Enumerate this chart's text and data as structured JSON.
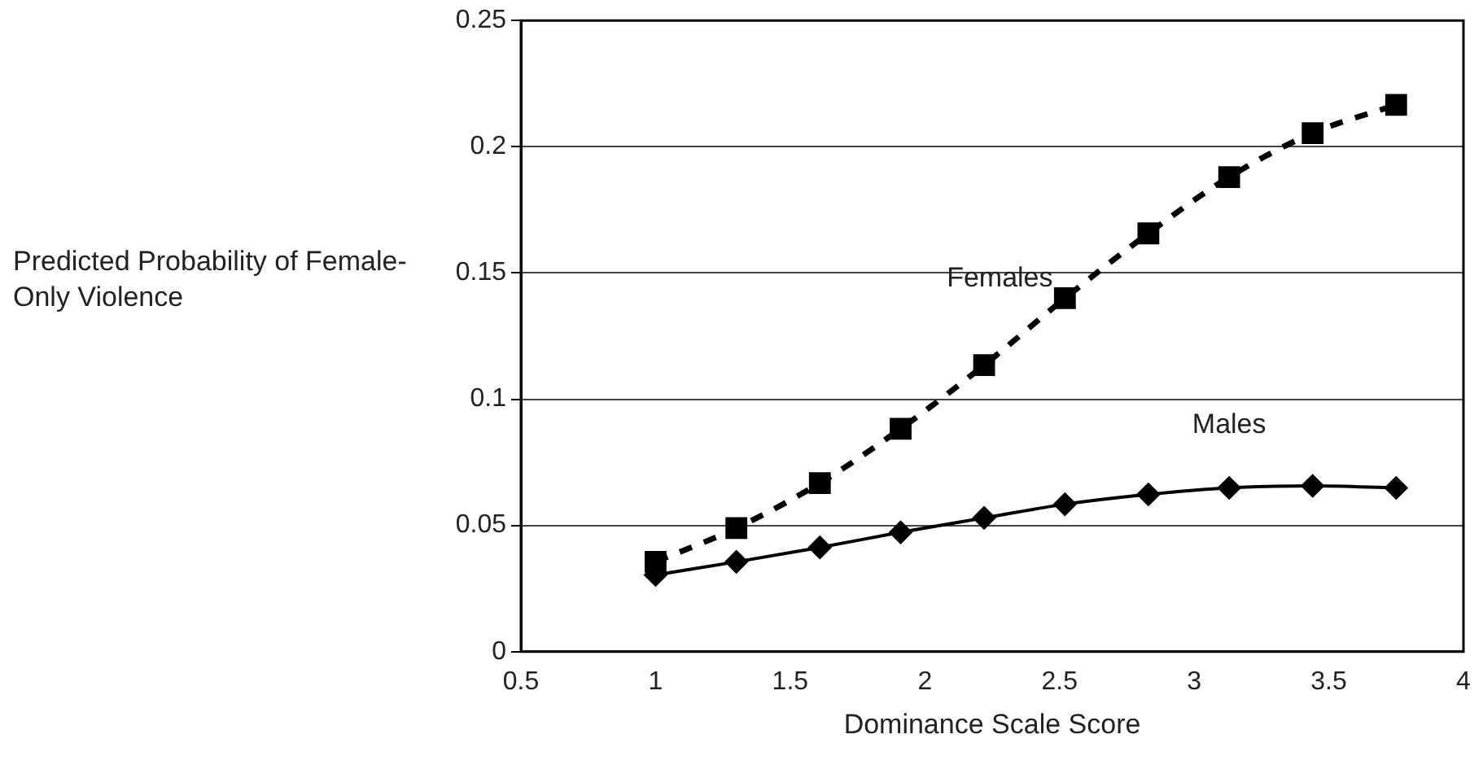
{
  "chart_data": {
    "type": "line",
    "xlabel": "Dominance Scale Score",
    "ylabel": "Predicted Probability of Female-Only Violence",
    "x": [
      1,
      1.3,
      1.61,
      1.91,
      2.22,
      2.52,
      2.83,
      3.13,
      3.44,
      3.75
    ],
    "series": [
      {
        "name": "Females",
        "color": "#000000",
        "marker": "square",
        "line_style": "dashed",
        "values": [
          0.0356,
          0.049,
          0.0668,
          0.0883,
          0.1135,
          0.14,
          0.1657,
          0.188,
          0.2054,
          0.2166
        ]
      },
      {
        "name": "Males",
        "color": "#000000",
        "marker": "diamond",
        "line_style": "solid",
        "values": [
          0.0304,
          0.0356,
          0.0413,
          0.0473,
          0.053,
          0.0584,
          0.0623,
          0.0649,
          0.0657,
          0.0649
        ]
      }
    ],
    "xlim": [
      0.5,
      4
    ],
    "xticks": [
      0.5,
      1,
      1.5,
      2,
      2.5,
      3,
      3.5,
      4
    ],
    "ylim": [
      0,
      0.25
    ],
    "yticks": [
      0,
      0.05,
      0.1,
      0.15,
      0.2,
      0.25
    ],
    "grid": "y",
    "legend": false
  }
}
